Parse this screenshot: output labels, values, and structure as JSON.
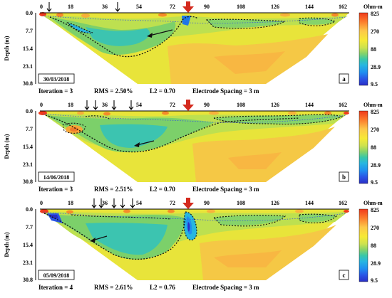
{
  "x_ticks": [
    "0",
    "18",
    "36",
    "54",
    "72",
    "90",
    "108",
    "126",
    "144",
    "162"
  ],
  "y_ticks": [
    "0.0",
    "7.7",
    "15.4",
    "23.1",
    "30.8"
  ],
  "y_label": "Depth (m)",
  "scale": {
    "title": "Ohm-m",
    "ticks": [
      "825",
      "270",
      "88",
      "28.9",
      "9.5"
    ],
    "colors": [
      "#f03a1c",
      "#fb7a2c",
      "#fdc84a",
      "#f6ea36",
      "#cde24f",
      "#86d36a",
      "#39c7a8",
      "#27b6e0",
      "#1f8ff0",
      "#2a55e6",
      "#2a2fc6"
    ]
  },
  "panels": [
    {
      "date": "30/03/2018",
      "letter": "a",
      "footer": [
        "Iteration = 3",
        "RMS = 2.50%",
        "L2 = 0.70",
        "Electrode Spacing = 3 m"
      ]
    },
    {
      "date": "14/06/2018",
      "letter": "b",
      "footer": [
        "Iteration = 3",
        "RMS = 2.51%",
        "L2 = 0.70",
        "Electrode Spacing = 3 m"
      ]
    },
    {
      "date": "05/09/2018",
      "letter": "c",
      "footer": [
        "Iteration = 4",
        "RMS = 2.61%",
        "L2 = 0.76",
        "Electrode Spacing = 3 m"
      ]
    }
  ]
}
